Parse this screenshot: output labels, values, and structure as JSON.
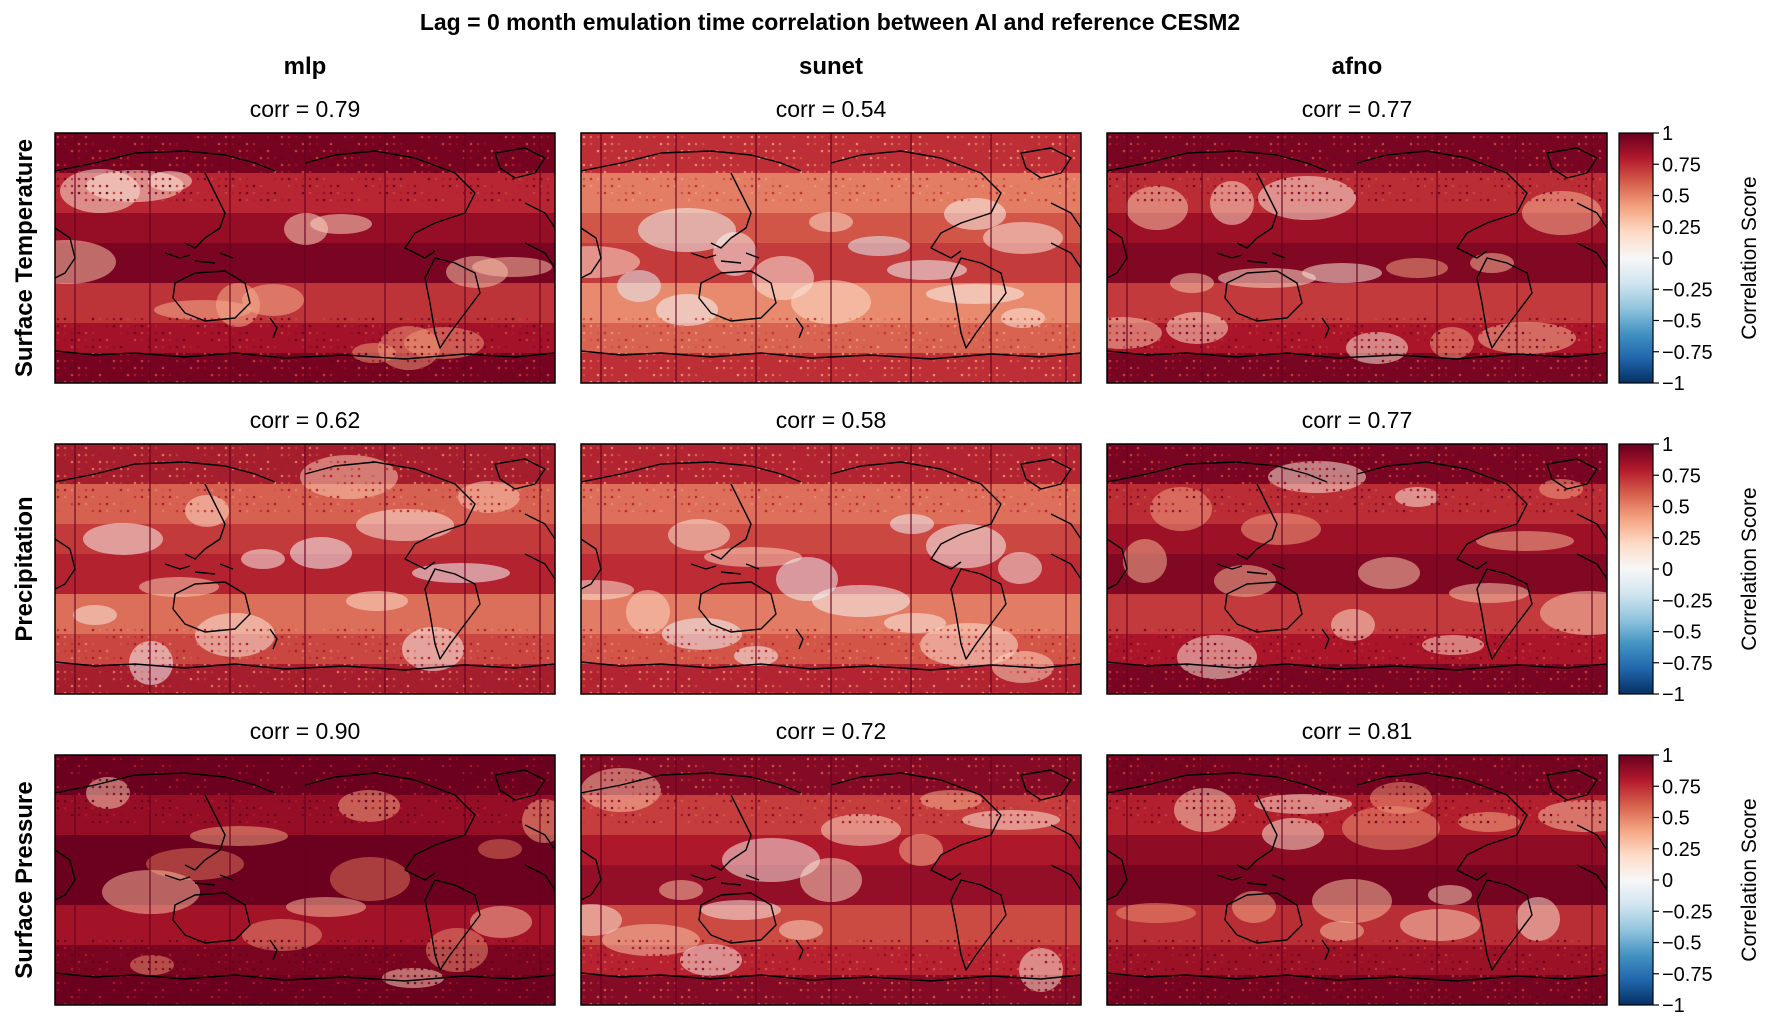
{
  "chart_data": {
    "type": "heatmap",
    "title": "Lag = 0 month emulation time correlation between AI and reference CESM2",
    "models": [
      "mlp",
      "sunet",
      "afno"
    ],
    "variables": [
      "Surface Temperature",
      "Precipitation",
      "Surface Pressure"
    ],
    "panels": [
      {
        "variable": "Surface Temperature",
        "model": "mlp",
        "label": "corr = 0.79",
        "corr": 0.79
      },
      {
        "variable": "Surface Temperature",
        "model": "sunet",
        "label": "corr = 0.54",
        "corr": 0.54
      },
      {
        "variable": "Surface Temperature",
        "model": "afno",
        "label": "corr = 0.77",
        "corr": 0.77
      },
      {
        "variable": "Precipitation",
        "model": "mlp",
        "label": "corr = 0.62",
        "corr": 0.62
      },
      {
        "variable": "Precipitation",
        "model": "sunet",
        "label": "corr = 0.58",
        "corr": 0.58
      },
      {
        "variable": "Precipitation",
        "model": "afno",
        "label": "corr = 0.77",
        "corr": 0.77
      },
      {
        "variable": "Surface Pressure",
        "model": "mlp",
        "label": "corr = 0.90",
        "corr": 0.9
      },
      {
        "variable": "Surface Pressure",
        "model": "sunet",
        "label": "corr = 0.72",
        "corr": 0.72
      },
      {
        "variable": "Surface Pressure",
        "model": "afno",
        "label": "corr = 0.81",
        "corr": 0.81
      }
    ],
    "colorbar": {
      "label": "Correlation Score",
      "range": [
        -1,
        1
      ],
      "ticks": [
        1,
        0.75,
        0.5,
        0.25,
        0,
        -0.25,
        -0.5,
        -0.75,
        -1
      ],
      "tick_labels": [
        "1",
        "0.75",
        "0.5",
        "0.25",
        "0",
        "−0.25",
        "−0.5",
        "−0.75",
        "−1"
      ],
      "colormap": "RdBu_r",
      "colors": [
        "#053061",
        "#2166ac",
        "#4393c3",
        "#92c5de",
        "#d1e5f0",
        "#f7f7f7",
        "#fddbc7",
        "#f4a582",
        "#d6604d",
        "#b2182b",
        "#67001f"
      ]
    },
    "colors": {
      "land_outline": "#000000"
    }
  }
}
